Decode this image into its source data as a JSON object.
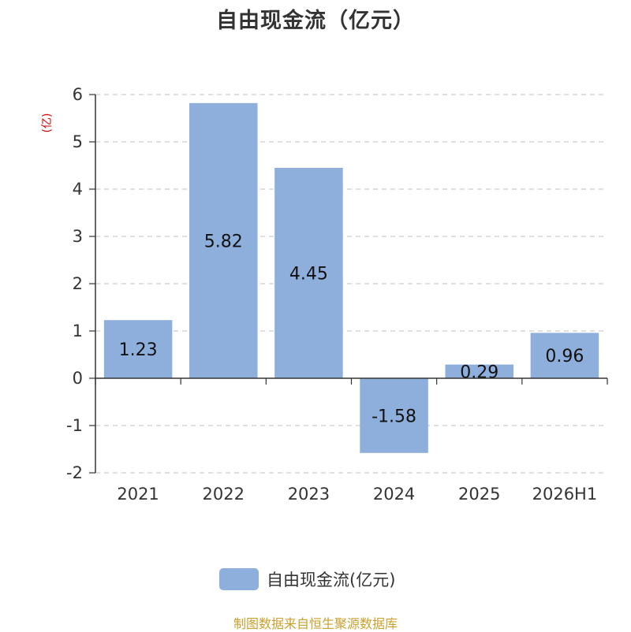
{
  "title": "自由现金流（亿元）",
  "colors": {
    "bar": "#8eafdc",
    "grid": "#cccccc",
    "axis": "#333333",
    "unit": "#cc0000",
    "source": "#c8a030"
  },
  "chart_data": {
    "type": "bar",
    "title": "自由现金流（亿元）",
    "ylabel": "(亿)",
    "categories": [
      "2021",
      "2022",
      "2023",
      "2024",
      "2025",
      "2026H1"
    ],
    "series": [
      {
        "name": "自由现金流(亿元)",
        "values": [
          1.23,
          5.82,
          4.45,
          -1.58,
          0.29,
          0.96
        ]
      }
    ],
    "ylim": [
      -2,
      6
    ],
    "yticks": [
      6,
      5,
      4,
      3,
      2,
      1,
      0,
      -1,
      -2
    ],
    "grid": true,
    "legend": "bottom-center"
  },
  "legend": {
    "label": "自由现金流(亿元)"
  },
  "source": "制图数据来自恒生聚源数据库"
}
